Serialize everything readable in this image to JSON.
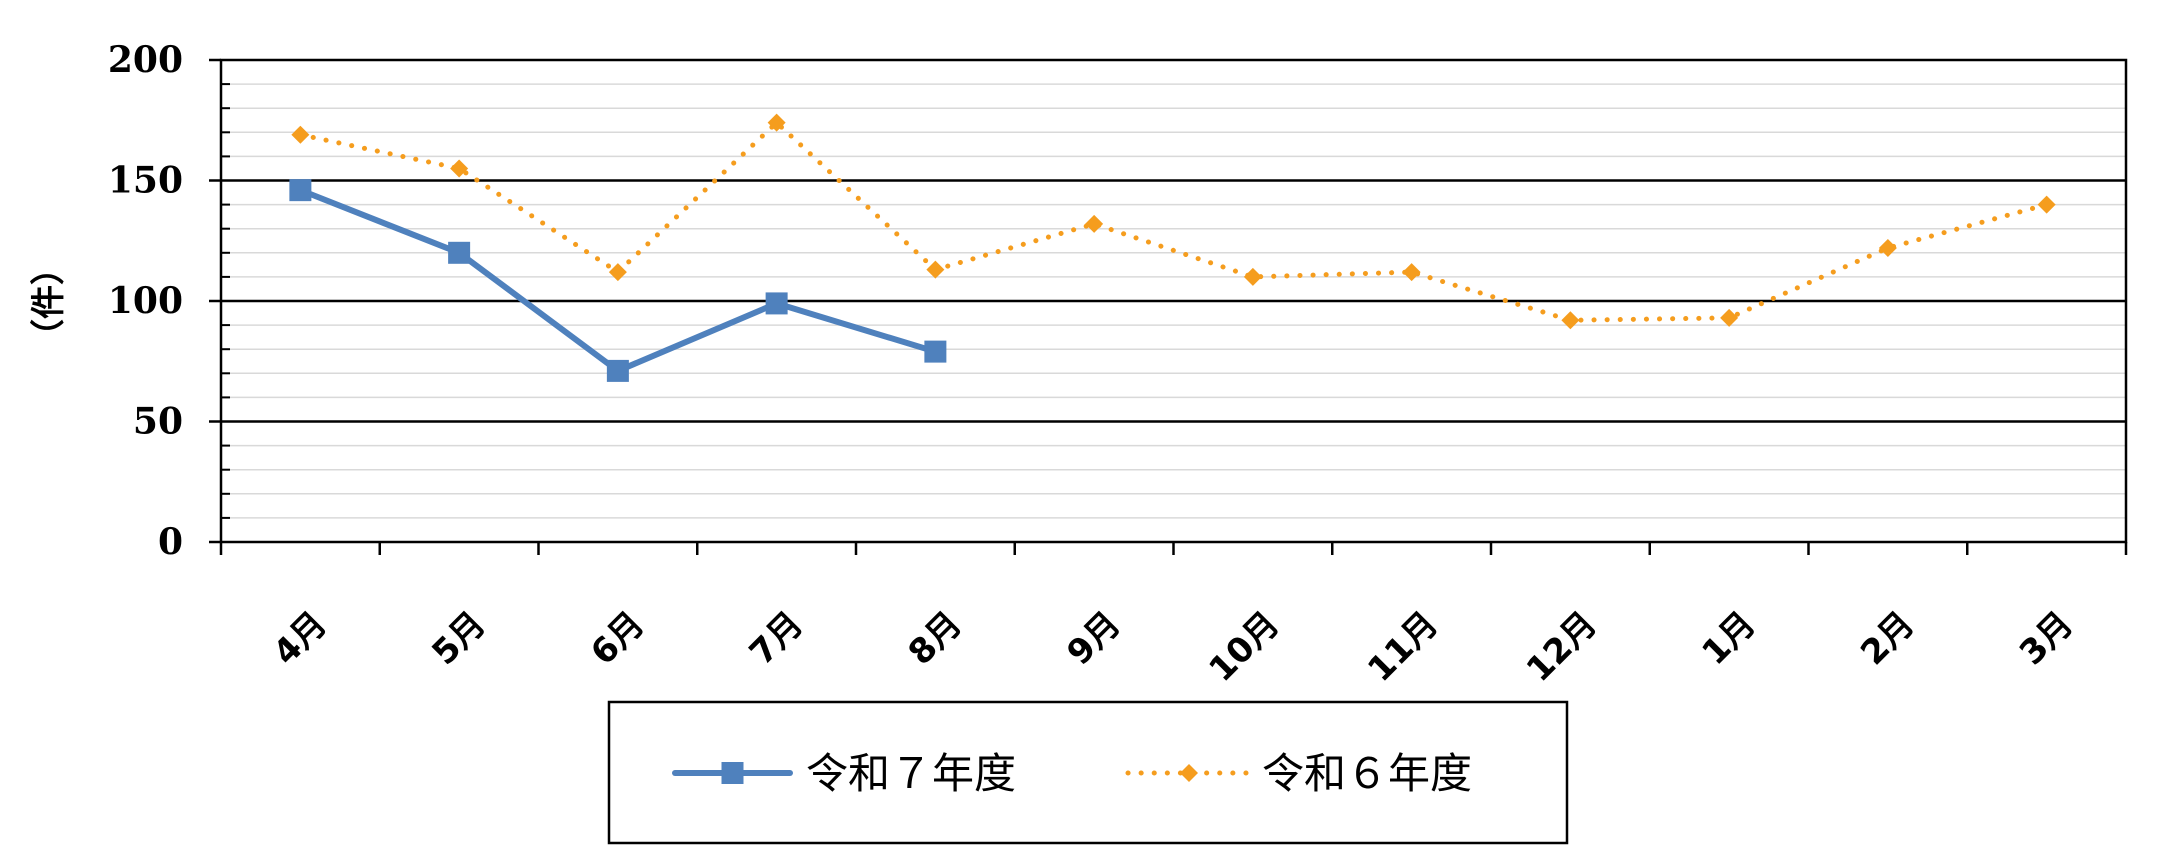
{
  "chart_data": {
    "type": "line",
    "title": "",
    "xlabel": "",
    "ylabel": "（件）",
    "ylim": [
      0,
      200
    ],
    "y_major_ticks": [
      0,
      50,
      100,
      150,
      200
    ],
    "y_minor_step": 10,
    "grid": true,
    "legend_position": "bottom",
    "categories": [
      "4月",
      "5月",
      "6月",
      "7月",
      "8月",
      "9月",
      "10月",
      "11月",
      "12月",
      "1月",
      "2月",
      "3月"
    ],
    "series": [
      {
        "name": "令和７年度",
        "color": "#4f81bd",
        "style": "solid",
        "marker": "square",
        "values": [
          146,
          120,
          71,
          99,
          79,
          null,
          null,
          null,
          null,
          null,
          null,
          null
        ]
      },
      {
        "name": "令和６年度",
        "color": "#f59d1e",
        "style": "dotted",
        "marker": "diamond",
        "values": [
          169,
          155,
          112,
          174,
          113,
          132,
          110,
          112,
          92,
          93,
          122,
          140
        ]
      }
    ]
  }
}
